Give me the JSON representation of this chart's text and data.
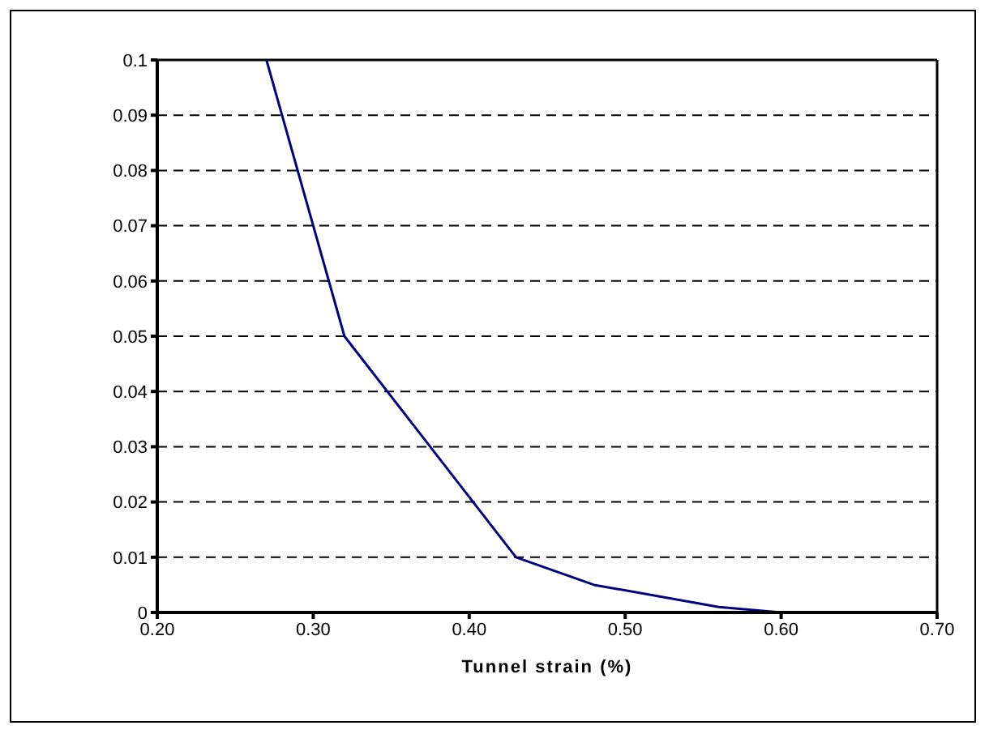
{
  "chart_data": {
    "type": "line",
    "xlabel": "Tunnel strain (%)",
    "x": [
      0.27,
      0.32,
      0.43,
      0.48,
      0.56,
      0.6
    ],
    "series": [
      {
        "color": "#000080",
        "values": [
          0.1,
          0.05,
          0.01,
          0.005,
          0.001,
          0
        ]
      }
    ],
    "xlim": [
      0.2,
      0.7
    ],
    "xticks": [
      {
        "value": 0.2,
        "label": "0.20"
      },
      {
        "value": 0.3,
        "label": "0.30"
      },
      {
        "value": 0.4,
        "label": "0.40"
      },
      {
        "value": 0.5,
        "label": "0.50"
      },
      {
        "value": 0.6,
        "label": "0.60"
      },
      {
        "value": 0.7,
        "label": "0.70"
      }
    ],
    "ylim": [
      0,
      0.1
    ],
    "yticks": [
      0,
      0.01,
      0.02,
      0.03,
      0.04,
      0.05,
      0.06,
      0.07,
      0.08,
      0.09,
      0.1
    ],
    "grid": "y",
    "marker": "none",
    "line_style": "solid",
    "legend": false
  }
}
